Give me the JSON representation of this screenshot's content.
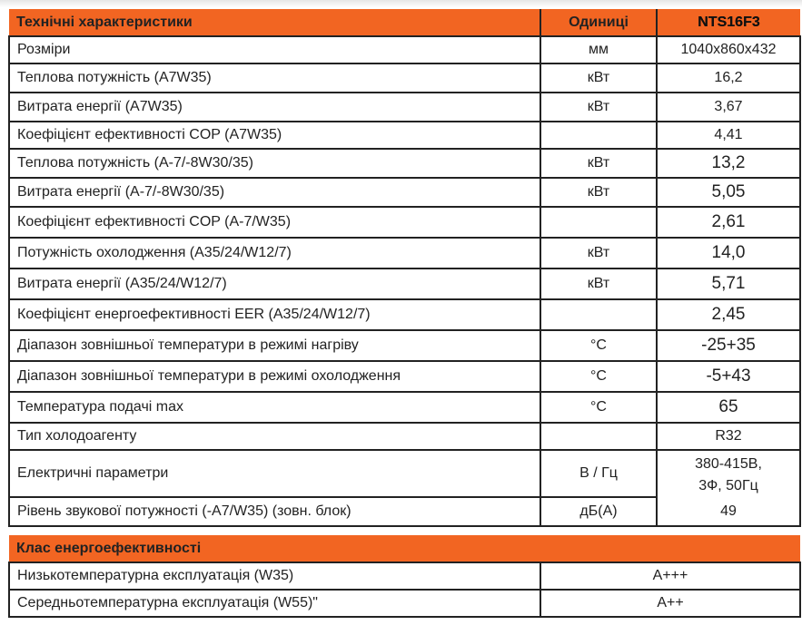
{
  "specs": {
    "header": {
      "title": "Технічні характеристики",
      "units": "Одиниці",
      "model": "NTS16F3"
    },
    "rows": [
      {
        "name": "Розміри",
        "unit": "мм",
        "value": "1040x860x432"
      },
      {
        "name": "Теплова потужність (A7W35)",
        "unit": "кВт",
        "value": "16,2"
      },
      {
        "name": "Витрата енергії (A7W35)",
        "unit": "кВт",
        "value": "3,67"
      },
      {
        "name": "Коефіцієнт ефективності COP (A7W35)",
        "unit": "",
        "value": "4,41"
      },
      {
        "name": "Теплова потужність (A-7/-8W30/35)",
        "unit": "кВт",
        "value": "13,2"
      },
      {
        "name": "Витрата енергії (A-7/-8W30/35)",
        "unit": "кВт",
        "value": "5,05"
      },
      {
        "name": "Коефіцієнт ефективності COP (A-7/W35)",
        "unit": "",
        "value": "2,61"
      },
      {
        "name": "Потужність охолодження (A35/24/W12/7)",
        "unit": "кВт",
        "value": "14,0"
      },
      {
        "name": "Витрата енергії (A35/24/W12/7)",
        "unit": "кВт",
        "value": "5,71"
      },
      {
        "name": "Коефіцієнт енергоефективності EER (A35/24/W12/7)",
        "unit": "",
        "value": "2,45"
      },
      {
        "name": "Діапазон зовнішньої температури в режимі нагріву",
        "unit": "°C",
        "value": "-25+35"
      },
      {
        "name": "Діапазон зовнішньої температури в режимі охолодження",
        "unit": "°C",
        "value": "-5+43"
      },
      {
        "name": "Температура подачі max",
        "unit": "°C",
        "value": "65"
      },
      {
        "name": "Тип холодоагенту",
        "unit": "",
        "value": "R32"
      },
      {
        "name": "Електричні параметри",
        "unit": "В / Гц",
        "value_line1": "380-415В,",
        "value_line2": "3Ф, 50Гц"
      },
      {
        "name": "Рівень звукової потужності (-A7/W35) (зовн. блок)",
        "unit": "дБ(A)",
        "value": "49"
      }
    ]
  },
  "energy": {
    "title": "Клас енергоефективності",
    "rows": [
      {
        "name": "Низькотемпературна експлуатація (W35)",
        "value": "A+++"
      },
      {
        "name": "Середньотемпературна експлуатація (W55)\"",
        "value": "A++"
      }
    ]
  },
  "colors": {
    "accent": "#f26522"
  }
}
